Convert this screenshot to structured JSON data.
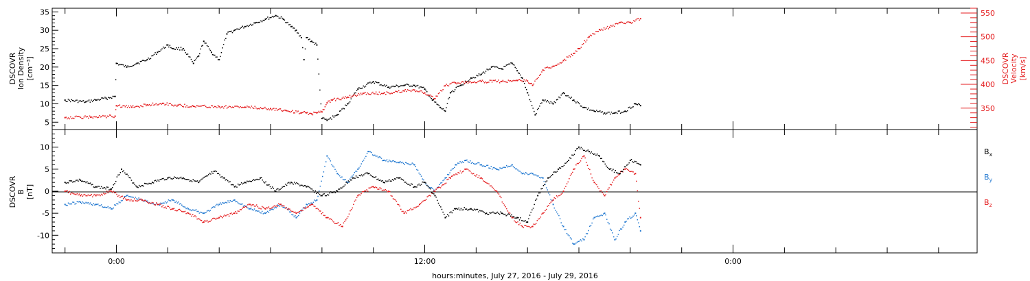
{
  "colors": {
    "black": "#000000",
    "red": "#e41a1c",
    "blue": "#1f77d0"
  },
  "chart_data": [
    {
      "type": "scatter",
      "panel": "top",
      "left_axis_label": [
        "DSCOVR",
        "Ion Density",
        "[cm⁻³]"
      ],
      "right_axis_label": [
        "DSCOVR",
        "Velocity",
        "[km/s]"
      ],
      "left_ylim": [
        3,
        36
      ],
      "left_ticks": [
        "5",
        "10",
        "15",
        "20",
        "25",
        "30",
        "35"
      ],
      "right_ylim": [
        305,
        560
      ],
      "right_ticks": [
        "350",
        "400",
        "450",
        "500",
        "550"
      ],
      "series": [
        {
          "axis": "left",
          "color": "#000000",
          "x": [
            -2.0,
            -1.2,
            -0.8,
            -0.4,
            -0.05,
            0.0,
            0.4,
            0.8,
            1.2,
            1.6,
            2.0,
            2.2,
            2.6,
            3.0,
            3.2,
            3.4,
            3.7,
            4.0,
            4.3,
            4.6,
            5.0,
            5.4,
            5.8,
            6.2,
            6.5,
            6.8,
            7.0,
            7.2,
            7.3,
            7.4,
            7.6,
            7.8,
            8.0,
            8.2,
            8.6,
            9.0,
            9.4,
            10.0,
            10.6,
            11.2,
            11.6,
            12.0,
            12.3,
            12.6,
            12.8,
            13.0,
            13.4,
            13.8,
            14.2,
            14.6,
            15.0,
            15.4,
            15.6,
            15.8,
            16.0,
            16.3,
            16.6,
            17.0,
            17.4,
            17.8,
            18.2,
            18.6,
            19.0,
            19.4,
            19.8,
            20.2,
            20.4
          ],
          "y": [
            11,
            10.5,
            11,
            11.5,
            12,
            21,
            20,
            21,
            22,
            24,
            26,
            25,
            25,
            21,
            23,
            27,
            24,
            22,
            29,
            30,
            31,
            32,
            33,
            34,
            33,
            31,
            30,
            28,
            22,
            28,
            27,
            26,
            6,
            5.5,
            7,
            10,
            14,
            16,
            14.5,
            15,
            15,
            14,
            11,
            9,
            8,
            13,
            15,
            17,
            18,
            20,
            19.5,
            21,
            19,
            17,
            13,
            7,
            11,
            10,
            13,
            11,
            9,
            8,
            7.5,
            7.5,
            8,
            10,
            9.5
          ]
        },
        {
          "axis": "right",
          "color": "#e41a1c",
          "x": [
            -2.0,
            -1.0,
            -0.05,
            0.0,
            0.6,
            1.2,
            1.8,
            2.4,
            3.0,
            4.0,
            5.0,
            6.0,
            6.6,
            7.2,
            7.4,
            7.6,
            7.8,
            8.0,
            8.2,
            8.4,
            9.0,
            9.6,
            10.4,
            11.2,
            11.6,
            12.0,
            12.4,
            12.8,
            13.2,
            13.6,
            14.2,
            15.0,
            15.6,
            16.0,
            16.2,
            16.6,
            17.0,
            17.4,
            17.8,
            18.0,
            18.4,
            18.8,
            19.2,
            19.6,
            20.0,
            20.4
          ],
          "y": [
            330,
            331,
            333,
            355,
            352,
            357,
            360,
            356,
            354,
            353,
            352,
            349,
            345,
            340,
            340,
            338,
            340,
            342,
            361,
            367,
            373,
            381,
            381,
            386,
            388,
            382,
            370,
            397,
            403,
            405,
            406,
            406,
            408,
            407,
            398,
            430,
            438,
            450,
            465,
            475,
            500,
            515,
            520,
            530,
            530,
            538
          ]
        }
      ]
    },
    {
      "type": "scatter",
      "panel": "bottom",
      "left_axis_label": [
        "DSCOVR",
        "B",
        "[nT]"
      ],
      "ylim": [
        -14,
        14
      ],
      "ticks": [
        "-10",
        "-5",
        "0",
        "5",
        "10"
      ],
      "legend": [
        {
          "label": "B",
          "sub": "x",
          "color": "#000000"
        },
        {
          "label": "B",
          "sub": "y",
          "color": "#1f77d0"
        },
        {
          "label": "B",
          "sub": "z",
          "color": "#e41a1c"
        }
      ],
      "series": [
        {
          "name": "Bx",
          "color": "#000000",
          "x": [
            -2.0,
            -1.4,
            -0.8,
            -0.2,
            0.2,
            0.8,
            1.4,
            2.0,
            2.6,
            3.2,
            3.8,
            4.2,
            4.6,
            5.0,
            5.6,
            6.2,
            6.8,
            7.4,
            8.0,
            8.6,
            9.2,
            9.8,
            10.4,
            11.0,
            11.6,
            12.0,
            12.4,
            12.8,
            13.2,
            13.8,
            14.4,
            15.0,
            15.6,
            16.0,
            16.4,
            16.8,
            17.2,
            17.6,
            18.0,
            18.4,
            18.8,
            19.2,
            19.6,
            20.0,
            20.4
          ],
          "y": [
            2,
            2.5,
            1,
            0.5,
            5,
            1,
            2,
            3,
            3,
            2,
            4.5,
            3,
            1,
            2,
            3,
            0,
            2,
            1,
            -1,
            0,
            3,
            4,
            2,
            3,
            1,
            2,
            -1,
            -6,
            -4,
            -4,
            -5,
            -5,
            -6,
            -7,
            -1,
            3,
            5,
            7,
            10,
            9,
            8,
            5,
            4,
            7,
            6
          ]
        },
        {
          "name": "By",
          "color": "#1f77d0",
          "x": [
            -2.0,
            -1.4,
            -0.8,
            -0.2,
            0.4,
            1.0,
            1.6,
            2.2,
            2.8,
            3.4,
            4.0,
            4.6,
            5.2,
            5.8,
            6.4,
            7.0,
            7.4,
            7.8,
            8.2,
            8.6,
            9.0,
            9.4,
            9.8,
            10.4,
            11.0,
            11.6,
            12.0,
            12.4,
            12.8,
            13.2,
            13.6,
            14.2,
            14.8,
            15.4,
            15.8,
            16.2,
            16.6,
            17.0,
            17.4,
            17.8,
            18.2,
            18.6,
            19.0,
            19.4,
            19.8,
            20.2,
            20.4
          ],
          "y": [
            -3,
            -2.5,
            -3,
            -4,
            -1,
            -2,
            -3,
            -2,
            -4,
            -5,
            -3,
            -2,
            -4,
            -5,
            -3,
            -6,
            -3,
            -2,
            8,
            4,
            2,
            5,
            9,
            7,
            6.5,
            6,
            2,
            0,
            3,
            6,
            7,
            6,
            5,
            6,
            4,
            4,
            3,
            -3,
            -8,
            -12,
            -11,
            -6,
            -5,
            -11,
            -7,
            -5,
            -9
          ]
        },
        {
          "name": "Bz",
          "color": "#e41a1c",
          "x": [
            -2.0,
            -1.4,
            -0.8,
            -0.2,
            0.4,
            1.0,
            1.6,
            2.2,
            2.8,
            3.4,
            4.0,
            4.6,
            5.2,
            5.8,
            6.4,
            7.0,
            7.6,
            8.2,
            8.8,
            9.4,
            10.0,
            10.6,
            11.2,
            11.8,
            12.4,
            13.0,
            13.6,
            14.2,
            14.8,
            15.4,
            15.8,
            16.2,
            16.6,
            17.0,
            17.4,
            17.8,
            18.2,
            18.6,
            19.0,
            19.4,
            19.8,
            20.2,
            20.4
          ],
          "y": [
            0,
            -1,
            -1,
            0,
            -2,
            -2,
            -3,
            -4,
            -5,
            -7,
            -6,
            -5,
            -3,
            -4,
            -3,
            -5,
            -3,
            -6,
            -8,
            -1,
            1,
            0,
            -5,
            -3,
            0,
            3,
            5,
            3,
            0,
            -6,
            -8,
            -8,
            -5,
            -2,
            0,
            5,
            8,
            2,
            -1,
            3,
            5,
            4,
            -6
          ]
        }
      ]
    }
  ],
  "x_axis": {
    "xlim": [
      -2.5,
      33.5
    ],
    "tick_hours": [
      0,
      12,
      24
    ],
    "tick_labels": [
      "0:00",
      "12:00",
      "0:00"
    ],
    "label": "hours:minutes, July 27, 2016 - July 29, 2016"
  }
}
